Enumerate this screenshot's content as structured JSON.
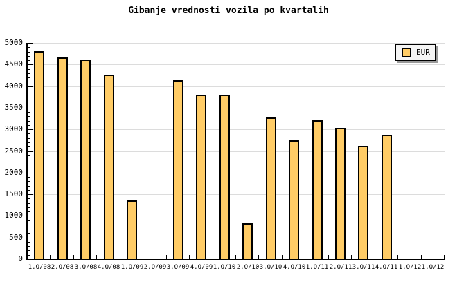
{
  "window": {
    "background": "#ffffff"
  },
  "chart_data": {
    "type": "bar",
    "title": "Gibanje vrednosti vozila po kvartalih",
    "categories": [
      "1.Q/08",
      "2.Q/08",
      "3.Q/08",
      "4.Q/08",
      "1.Q/09",
      "2.Q/09",
      "3.Q/09",
      "4.Q/09",
      "1.Q/10",
      "2.Q/10",
      "3.Q/10",
      "4.Q/10",
      "1.Q/11",
      "2.Q/11",
      "3.Q/11",
      "4.Q/11",
      "1.Q/12",
      "1.Q/12"
    ],
    "series": [
      {
        "name": "EUR",
        "values": [
          4810,
          4660,
          4600,
          4270,
          1360,
          null,
          4130,
          3800,
          3800,
          830,
          3280,
          2740,
          3210,
          3030,
          2620,
          2880,
          null,
          null
        ]
      }
    ],
    "xlabel": "",
    "ylabel": "",
    "ylim": [
      0,
      5000
    ],
    "y_ticks": [
      0,
      500,
      1000,
      1500,
      2000,
      2500,
      3000,
      3500,
      4000,
      4500,
      5000
    ],
    "y_major_step": 500,
    "y_minor_step": 100,
    "grid": "horizontal",
    "legend": {
      "label": "EUR",
      "position": "top-right"
    },
    "colors": {
      "bar_fill": "#ffcc66",
      "bar_border": "#000000",
      "gridline": "#dcdcdc",
      "axis": "#000000",
      "legend_bg": "#f4f4f4",
      "legend_shadow": "#999999"
    }
  }
}
